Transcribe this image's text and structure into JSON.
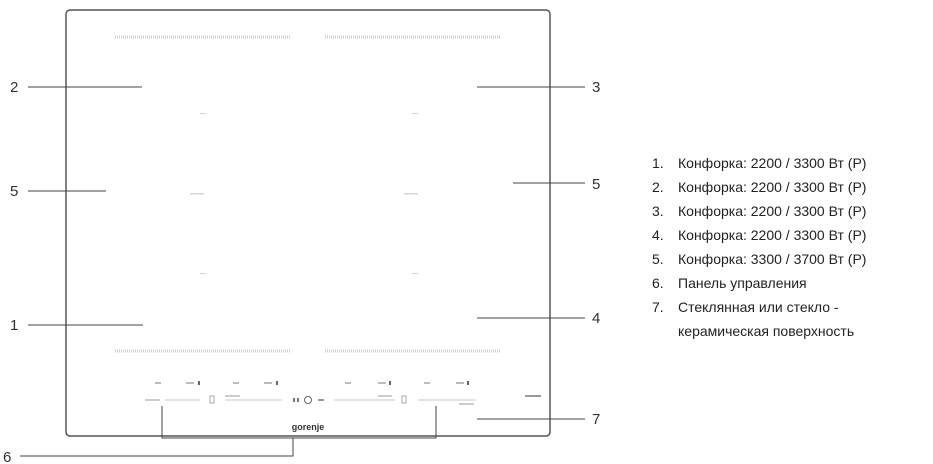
{
  "callouts": {
    "c1": "1",
    "c2": "2",
    "c3": "3",
    "c4": "4",
    "c5_left": "5",
    "c5_right": "5",
    "c6": "6",
    "c7": "7"
  },
  "brand": "gorenje",
  "legend": [
    {
      "num": "1.",
      "text": "Конфорка: 2200 / 3300 Вт (P)"
    },
    {
      "num": "2.",
      "text": "Конфорка: 2200 / 3300 Вт (P)"
    },
    {
      "num": "3.",
      "text": "Конфорка: 2200 / 3300 Вт (P)"
    },
    {
      "num": "4.",
      "text": "Конфорка: 2200 / 3300 Вт (P)"
    },
    {
      "num": "5.",
      "text": "Конфорка: 3300 / 3700 Вт (P)"
    },
    {
      "num": "6.",
      "text": "Панель управления"
    },
    {
      "num": "7.",
      "text": "Стеклянная или стекло -",
      "text2": "керамическая поверхность"
    }
  ]
}
